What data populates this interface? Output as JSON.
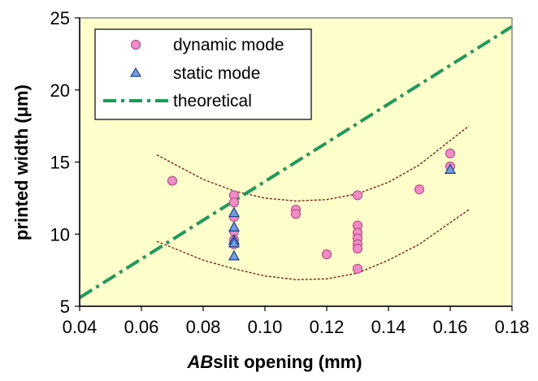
{
  "chart_data": {
    "type": "scatter",
    "xlabel_prefix": "AB",
    "xlabel": "slit opening (mm)",
    "ylabel": "printed width (μm)",
    "xlim": [
      0.04,
      0.18
    ],
    "ylim": [
      5,
      25
    ],
    "x_ticks": [
      "0.04",
      "0.06",
      "0.08",
      "0.10",
      "0.12",
      "0.14",
      "0.16",
      "0.18"
    ],
    "y_ticks": [
      "5",
      "10",
      "15",
      "20",
      "25"
    ],
    "plot_background": "#FFFFCC",
    "legend_position": "top-left",
    "series": [
      {
        "name": "dynamic mode",
        "marker": "circle",
        "color": "#F08CC8",
        "edge": "#C0508C",
        "points": [
          [
            0.07,
            13.7
          ],
          [
            0.09,
            12.7
          ],
          [
            0.09,
            12.2
          ],
          [
            0.09,
            11.2
          ],
          [
            0.09,
            10.2
          ],
          [
            0.09,
            9.6
          ],
          [
            0.09,
            9.3
          ],
          [
            0.11,
            11.7
          ],
          [
            0.11,
            11.4
          ],
          [
            0.12,
            8.6
          ],
          [
            0.13,
            12.7
          ],
          [
            0.13,
            10.6
          ],
          [
            0.13,
            10.1
          ],
          [
            0.13,
            9.7
          ],
          [
            0.13,
            9.3
          ],
          [
            0.13,
            9.0
          ],
          [
            0.13,
            7.6
          ],
          [
            0.15,
            13.1
          ],
          [
            0.16,
            15.6
          ],
          [
            0.16,
            14.7
          ]
        ]
      },
      {
        "name": "static mode",
        "marker": "triangle",
        "color": "#6F9FE0",
        "edge": "#1F3F8F",
        "points": [
          [
            0.09,
            11.5
          ],
          [
            0.09,
            10.5
          ],
          [
            0.09,
            9.6
          ],
          [
            0.09,
            9.4
          ],
          [
            0.09,
            8.5
          ],
          [
            0.16,
            14.5
          ]
        ]
      },
      {
        "name": "theoretical",
        "type": "line",
        "style": "dash-dot",
        "color": "#1E9A5A",
        "points": [
          [
            0.04,
            5.6
          ],
          [
            0.18,
            24.4
          ]
        ]
      },
      {
        "type": "line",
        "style": "dotted",
        "color": "#8B1A1A",
        "points": [
          [
            0.065,
            15.5
          ],
          [
            0.08,
            13.8
          ],
          [
            0.09,
            13.0
          ],
          [
            0.1,
            12.5
          ],
          [
            0.11,
            12.3
          ],
          [
            0.12,
            12.4
          ],
          [
            0.13,
            12.8
          ],
          [
            0.14,
            13.6
          ],
          [
            0.15,
            14.8
          ],
          [
            0.16,
            16.5
          ],
          [
            0.166,
            17.5
          ]
        ]
      },
      {
        "type": "line",
        "style": "dotted",
        "color": "#8B1A1A",
        "points": [
          [
            0.065,
            9.5
          ],
          [
            0.08,
            8.2
          ],
          [
            0.09,
            7.6
          ],
          [
            0.1,
            7.1
          ],
          [
            0.11,
            6.85
          ],
          [
            0.12,
            6.9
          ],
          [
            0.13,
            7.3
          ],
          [
            0.14,
            8.2
          ],
          [
            0.15,
            9.3
          ],
          [
            0.16,
            10.8
          ],
          [
            0.166,
            11.7
          ]
        ]
      }
    ]
  }
}
